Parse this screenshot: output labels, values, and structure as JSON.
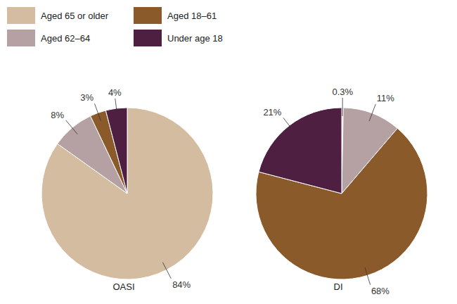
{
  "chart_data": [
    {
      "type": "pie",
      "title": "OASI",
      "categories": [
        "Aged 65 or older",
        "Aged 62–64",
        "Aged 18–61",
        "Under age 18"
      ],
      "values": [
        84,
        8,
        3,
        4
      ],
      "value_labels": [
        "84%",
        "8%",
        "3%",
        "4%"
      ],
      "colors": [
        "#d4bca0",
        "#b5a1a4",
        "#8b5a2b",
        "#4e1f40"
      ],
      "data_labels": true,
      "legend": "top left"
    },
    {
      "type": "pie",
      "title": "DI",
      "categories": [
        "Aged 65 or older",
        "Aged 62–64",
        "Aged 18–61",
        "Under age 18"
      ],
      "values": [
        0.3,
        11,
        68,
        21
      ],
      "value_labels": [
        "0.3%",
        "11%",
        "68%",
        "21%"
      ],
      "colors": [
        "#d4bca0",
        "#b5a1a4",
        "#8b5a2b",
        "#4e1f40"
      ],
      "data_labels": true
    }
  ]
}
